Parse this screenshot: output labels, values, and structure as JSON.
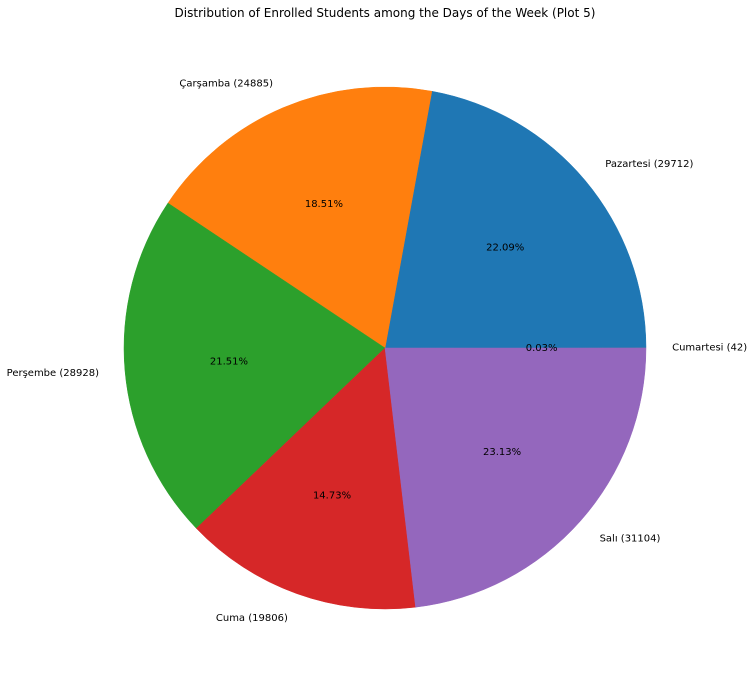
{
  "chart_data": {
    "type": "pie",
    "title": "Distribution of Enrolled Students among the Days of the Week (Plot 5)",
    "slices": [
      {
        "name": "Cumartesi",
        "value": 42,
        "label": "Cumartesi (42)",
        "percent_label": "0.03%",
        "color": "#7f7f7f"
      },
      {
        "name": "Pazartesi",
        "value": 29712,
        "label": "Pazartesi (29712)",
        "percent_label": "22.09%",
        "color": "#1f77b4"
      },
      {
        "name": "Çarşamba",
        "value": 24885,
        "label": "Çarşamba (24885)",
        "percent_label": "18.51%",
        "color": "#ff7f0e"
      },
      {
        "name": "Perşembe",
        "value": 28928,
        "label": "Perşembe (28928)",
        "percent_label": "21.51%",
        "color": "#2ca02c"
      },
      {
        "name": "Cuma",
        "value": 19806,
        "label": "Cuma (19806)",
        "percent_label": "14.73%",
        "color": "#d62728"
      },
      {
        "name": "Salı",
        "value": 31104,
        "label": "Salı (31104)",
        "percent_label": "23.13%",
        "color": "#9467bd"
      }
    ],
    "start_angle_deg": 0,
    "direction": "counterclockwise",
    "legend": "none"
  }
}
